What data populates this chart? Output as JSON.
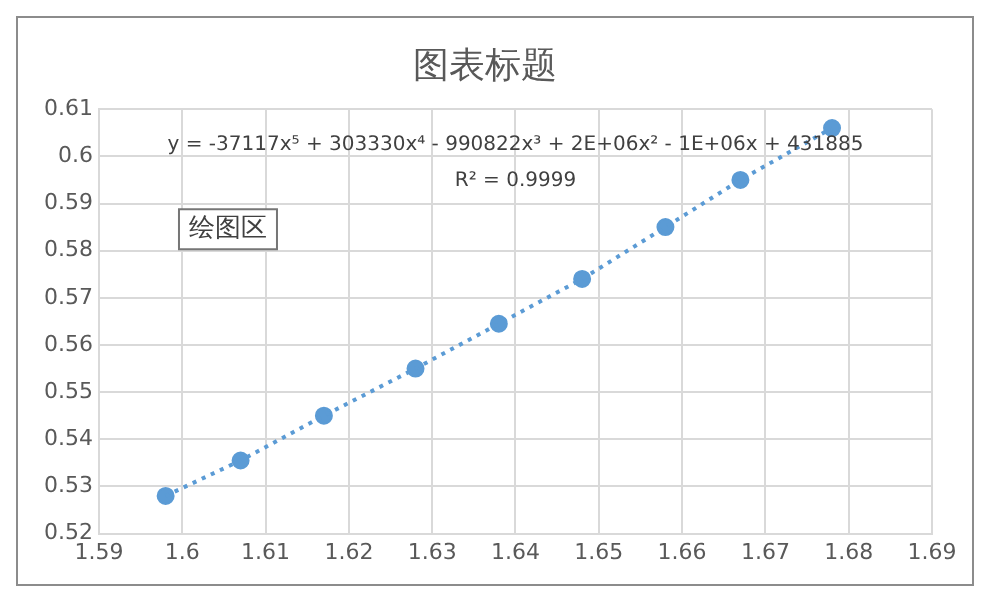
{
  "chart_data": {
    "type": "scatter",
    "title": "图表标题",
    "xlim": [
      1.59,
      1.69
    ],
    "xticks": [
      1.59,
      1.6,
      1.61,
      1.62,
      1.63,
      1.64,
      1.65,
      1.66,
      1.67,
      1.68,
      1.69
    ],
    "ylim": [
      0.52,
      0.61
    ],
    "yticks": [
      0.52,
      0.53,
      0.54,
      0.55,
      0.56,
      0.57,
      0.58,
      0.59,
      0.6,
      0.61
    ],
    "grid": true,
    "legend": false,
    "marker": "circle",
    "series": [
      {
        "type": "line",
        "line_style": "dotted",
        "marker": "none",
        "color": "#5b9bd5",
        "x": [
          1.598,
          1.607,
          1.617,
          1.628,
          1.638,
          1.648,
          1.658,
          1.667,
          1.678
        ],
        "values": [
          0.528,
          0.5355,
          0.545,
          0.555,
          0.5645,
          0.574,
          0.585,
          0.595,
          0.606
        ]
      },
      {
        "color": "#5b9bd5",
        "x": [
          1.598,
          1.607,
          1.617,
          1.628,
          1.638,
          1.648,
          1.658,
          1.667,
          1.678
        ],
        "values": [
          0.528,
          0.5355,
          0.545,
          0.555,
          0.5645,
          0.574,
          0.585,
          0.595,
          0.606
        ]
      }
    ],
    "annotations": [
      "y = -37117x⁵ + 303330x⁴ - 990822x³ + 2E+06x² - 1E+06x + 431885",
      "R² = 0.9999",
      "绘图区"
    ]
  }
}
